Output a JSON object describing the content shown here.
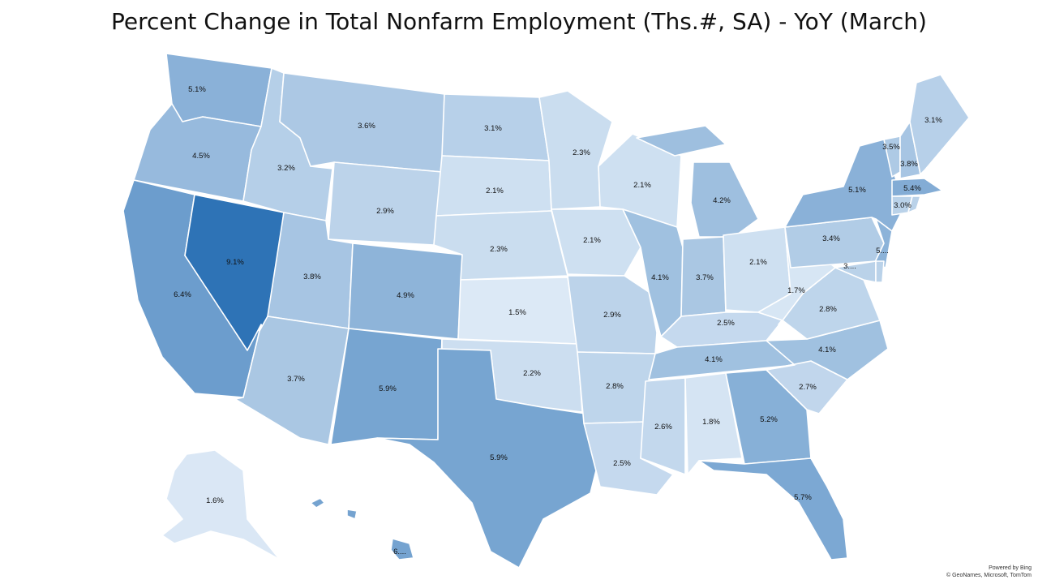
{
  "title": "Percent Change in Total Nonfarm Employment (Ths.#, SA) - YoY (March)",
  "attribution": {
    "line1": "Powered by Bing",
    "line2": "© GeoNames, Microsoft, TomTom"
  },
  "color_scale": {
    "min_color": "#dce9f6",
    "max_color": "#2e73b6",
    "min_value": 1.5,
    "max_value": 9.1
  },
  "states": [
    {
      "code": "WA",
      "label": "5.1%",
      "value": 5.1
    },
    {
      "code": "OR",
      "label": "4.5%",
      "value": 4.5
    },
    {
      "code": "CA",
      "label": "6.4%",
      "value": 6.4
    },
    {
      "code": "NV",
      "label": "9.1%",
      "value": 9.1
    },
    {
      "code": "ID",
      "label": "3.2%",
      "value": 3.2
    },
    {
      "code": "MT",
      "label": "3.6%",
      "value": 3.6
    },
    {
      "code": "WY",
      "label": "2.9%",
      "value": 2.9
    },
    {
      "code": "UT",
      "label": "3.8%",
      "value": 3.8
    },
    {
      "code": "AZ",
      "label": "3.7%",
      "value": 3.7
    },
    {
      "code": "CO",
      "label": "4.9%",
      "value": 4.9
    },
    {
      "code": "NM",
      "label": "5.9%",
      "value": 5.9
    },
    {
      "code": "ND",
      "label": "3.1%",
      "value": 3.1
    },
    {
      "code": "SD",
      "label": "2.1%",
      "value": 2.1
    },
    {
      "code": "NE",
      "label": "2.3%",
      "value": 2.3
    },
    {
      "code": "KS",
      "label": "1.5%",
      "value": 1.5
    },
    {
      "code": "OK",
      "label": "2.2%",
      "value": 2.2
    },
    {
      "code": "TX",
      "label": "5.9%",
      "value": 5.9
    },
    {
      "code": "MN",
      "label": "2.3%",
      "value": 2.3
    },
    {
      "code": "IA",
      "label": "2.1%",
      "value": 2.1
    },
    {
      "code": "MO",
      "label": "2.9%",
      "value": 2.9
    },
    {
      "code": "AR",
      "label": "2.8%",
      "value": 2.8
    },
    {
      "code": "LA",
      "label": "2.5%",
      "value": 2.5
    },
    {
      "code": "WI",
      "label": "2.1%",
      "value": 2.1
    },
    {
      "code": "IL",
      "label": "4.1%",
      "value": 4.1
    },
    {
      "code": "MI",
      "label": "4.2%",
      "value": 4.2
    },
    {
      "code": "IN",
      "label": "3.7%",
      "value": 3.7
    },
    {
      "code": "OH",
      "label": "2.1%",
      "value": 2.1
    },
    {
      "code": "KY",
      "label": "2.5%",
      "value": 2.5
    },
    {
      "code": "TN",
      "label": "4.1%",
      "value": 4.1
    },
    {
      "code": "MS",
      "label": "2.6%",
      "value": 2.6
    },
    {
      "code": "AL",
      "label": "1.8%",
      "value": 1.8
    },
    {
      "code": "GA",
      "label": "5.2%",
      "value": 5.2
    },
    {
      "code": "FL",
      "label": "5.7%",
      "value": 5.7
    },
    {
      "code": "SC",
      "label": "2.7%",
      "value": 2.7
    },
    {
      "code": "NC",
      "label": "4.1%",
      "value": 4.1
    },
    {
      "code": "VA",
      "label": "2.8%",
      "value": 2.8
    },
    {
      "code": "WV",
      "label": "1.7%",
      "value": 1.7
    },
    {
      "code": "PA",
      "label": "3.4%",
      "value": 3.4
    },
    {
      "code": "NY",
      "label": "5.1%",
      "value": 5.1
    },
    {
      "code": "VT",
      "label": "3.5%",
      "value": 3.5
    },
    {
      "code": "NH",
      "label": "3.8%",
      "value": 3.8
    },
    {
      "code": "ME",
      "label": "3.1%",
      "value": 3.1
    },
    {
      "code": "MA",
      "label": "5.4%",
      "value": 5.4
    },
    {
      "code": "CT",
      "label": "3.0%",
      "value": 3.0
    },
    {
      "code": "NJ",
      "label": "5....",
      "value": null
    },
    {
      "code": "MD",
      "label": "3....",
      "value": null
    },
    {
      "code": "DE",
      "label": "",
      "value": null
    },
    {
      "code": "RI",
      "label": "",
      "value": null
    },
    {
      "code": "AK",
      "label": "1.6%",
      "value": 1.6
    },
    {
      "code": "HI",
      "label": "6....",
      "value": null
    }
  ]
}
